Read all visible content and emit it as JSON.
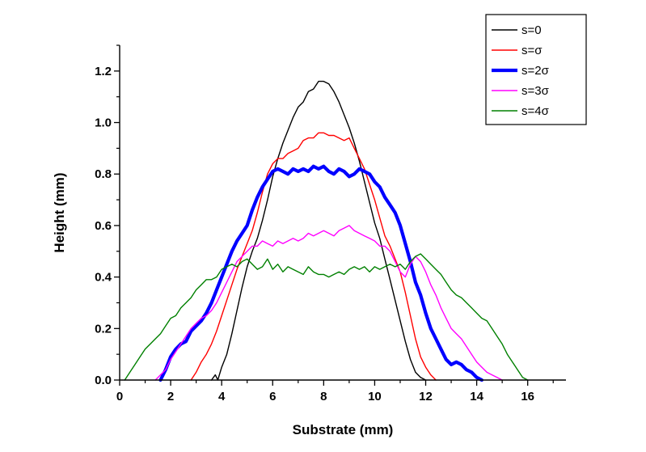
{
  "chart_data": {
    "type": "line",
    "xlabel": "Substrate (mm)",
    "ylabel": "Height (mm)",
    "xlim": [
      0,
      17.5
    ],
    "ylim": [
      0,
      1.3
    ],
    "xticks": [
      0,
      2,
      4,
      6,
      8,
      10,
      12,
      14,
      16
    ],
    "xtick_labels": [
      "0",
      "2",
      "4",
      "6",
      "8",
      "10",
      "12",
      "14",
      "16"
    ],
    "yticks": [
      0,
      0.2,
      0.4,
      0.6,
      0.8,
      1.0,
      1.2
    ],
    "ytick_labels": [
      "0.0",
      "0.2",
      "0.4",
      "0.6",
      "0.8",
      "1.0",
      "1.2"
    ],
    "grid": false,
    "legend_position": "top-right",
    "series": [
      {
        "name": "s=0",
        "color": "#000000",
        "x": [
          3.6,
          3.75,
          3.85,
          4.0,
          4.2,
          4.4,
          4.6,
          4.8,
          5.0,
          5.2,
          5.4,
          5.6,
          5.8,
          6.0,
          6.2,
          6.4,
          6.6,
          6.8,
          7.0,
          7.2,
          7.4,
          7.6,
          7.8,
          8.0,
          8.2,
          8.4,
          8.6,
          8.8,
          9.0,
          9.2,
          9.4,
          9.6,
          9.8,
          10.0,
          10.2,
          10.4,
          10.6,
          10.8,
          11.0,
          11.2,
          11.4,
          11.6,
          11.8,
          12.0
        ],
        "y": [
          0.0,
          0.02,
          0.0,
          0.05,
          0.1,
          0.18,
          0.27,
          0.36,
          0.44,
          0.5,
          0.55,
          0.62,
          0.7,
          0.79,
          0.86,
          0.92,
          0.97,
          1.02,
          1.06,
          1.08,
          1.12,
          1.13,
          1.16,
          1.16,
          1.15,
          1.12,
          1.08,
          1.03,
          0.98,
          0.92,
          0.85,
          0.77,
          0.69,
          0.61,
          0.55,
          0.47,
          0.39,
          0.31,
          0.23,
          0.15,
          0.08,
          0.03,
          0.01,
          0.0
        ]
      },
      {
        "name": "s=σ",
        "color": "#ff0000",
        "x": [
          2.8,
          3.0,
          3.2,
          3.4,
          3.6,
          3.8,
          4.0,
          4.2,
          4.4,
          4.6,
          4.8,
          5.0,
          5.2,
          5.4,
          5.6,
          5.8,
          6.0,
          6.2,
          6.4,
          6.6,
          6.8,
          7.0,
          7.2,
          7.4,
          7.6,
          7.8,
          8.0,
          8.2,
          8.4,
          8.6,
          8.8,
          9.0,
          9.2,
          9.4,
          9.6,
          9.8,
          10.0,
          10.2,
          10.4,
          10.6,
          10.8,
          11.0,
          11.2,
          11.4,
          11.6,
          11.8,
          12.0,
          12.2,
          12.4
        ],
        "y": [
          0.0,
          0.03,
          0.07,
          0.1,
          0.14,
          0.19,
          0.25,
          0.31,
          0.37,
          0.43,
          0.48,
          0.53,
          0.58,
          0.65,
          0.73,
          0.8,
          0.84,
          0.86,
          0.86,
          0.88,
          0.89,
          0.9,
          0.93,
          0.94,
          0.94,
          0.96,
          0.96,
          0.95,
          0.95,
          0.94,
          0.93,
          0.94,
          0.9,
          0.86,
          0.82,
          0.76,
          0.7,
          0.63,
          0.56,
          0.52,
          0.47,
          0.42,
          0.34,
          0.25,
          0.16,
          0.09,
          0.05,
          0.02,
          0.0
        ]
      },
      {
        "name": "s=2σ",
        "color": "#0000ff",
        "x": [
          1.6,
          1.8,
          2.0,
          2.2,
          2.4,
          2.6,
          2.8,
          3.0,
          3.2,
          3.4,
          3.6,
          3.8,
          4.0,
          4.2,
          4.4,
          4.6,
          4.8,
          5.0,
          5.2,
          5.4,
          5.6,
          5.8,
          6.0,
          6.2,
          6.4,
          6.6,
          6.8,
          7.0,
          7.2,
          7.4,
          7.6,
          7.8,
          8.0,
          8.2,
          8.4,
          8.6,
          8.8,
          9.0,
          9.2,
          9.4,
          9.6,
          9.8,
          10.0,
          10.2,
          10.4,
          10.6,
          10.8,
          11.0,
          11.2,
          11.4,
          11.6,
          11.8,
          12.0,
          12.2,
          12.4,
          12.6,
          12.8,
          13.0,
          13.2,
          13.4,
          13.6,
          13.8,
          14.0,
          14.2
        ],
        "y": [
          0.0,
          0.04,
          0.09,
          0.12,
          0.14,
          0.15,
          0.19,
          0.21,
          0.23,
          0.26,
          0.3,
          0.35,
          0.4,
          0.45,
          0.5,
          0.54,
          0.57,
          0.6,
          0.66,
          0.71,
          0.75,
          0.78,
          0.81,
          0.82,
          0.81,
          0.8,
          0.82,
          0.81,
          0.82,
          0.81,
          0.83,
          0.82,
          0.83,
          0.81,
          0.8,
          0.82,
          0.81,
          0.79,
          0.8,
          0.82,
          0.81,
          0.8,
          0.77,
          0.75,
          0.71,
          0.68,
          0.65,
          0.6,
          0.53,
          0.46,
          0.38,
          0.33,
          0.26,
          0.2,
          0.16,
          0.12,
          0.08,
          0.06,
          0.07,
          0.06,
          0.04,
          0.03,
          0.01,
          0.0
        ]
      },
      {
        "name": "s=3σ",
        "color": "#ff00ff",
        "x": [
          1.4,
          1.6,
          1.8,
          2.0,
          2.2,
          2.4,
          2.6,
          2.8,
          3.0,
          3.2,
          3.4,
          3.6,
          3.8,
          4.0,
          4.2,
          4.4,
          4.6,
          4.8,
          5.0,
          5.2,
          5.4,
          5.6,
          5.8,
          6.0,
          6.2,
          6.4,
          6.6,
          6.8,
          7.0,
          7.2,
          7.4,
          7.6,
          7.8,
          8.0,
          8.2,
          8.4,
          8.6,
          8.8,
          9.0,
          9.2,
          9.4,
          9.6,
          9.8,
          10.0,
          10.2,
          10.4,
          10.6,
          10.8,
          11.0,
          11.2,
          11.4,
          11.6,
          11.8,
          12.0,
          12.2,
          12.4,
          12.6,
          12.8,
          13.0,
          13.2,
          13.4,
          13.6,
          13.8,
          14.0,
          14.2,
          14.4,
          14.6,
          14.8,
          15.0
        ],
        "y": [
          0.0,
          0.02,
          0.04,
          0.08,
          0.11,
          0.14,
          0.17,
          0.2,
          0.22,
          0.24,
          0.25,
          0.27,
          0.3,
          0.34,
          0.38,
          0.42,
          0.46,
          0.48,
          0.5,
          0.52,
          0.52,
          0.54,
          0.53,
          0.52,
          0.54,
          0.53,
          0.54,
          0.55,
          0.54,
          0.55,
          0.57,
          0.56,
          0.57,
          0.58,
          0.57,
          0.56,
          0.58,
          0.59,
          0.6,
          0.58,
          0.57,
          0.56,
          0.55,
          0.54,
          0.52,
          0.52,
          0.5,
          0.46,
          0.42,
          0.4,
          0.45,
          0.48,
          0.46,
          0.42,
          0.37,
          0.33,
          0.28,
          0.24,
          0.2,
          0.18,
          0.16,
          0.13,
          0.1,
          0.07,
          0.05,
          0.03,
          0.02,
          0.01,
          0.0
        ]
      },
      {
        "name": "s=4σ",
        "color": "#008000",
        "x": [
          0.2,
          0.4,
          0.6,
          0.8,
          1.0,
          1.2,
          1.4,
          1.6,
          1.8,
          2.0,
          2.2,
          2.4,
          2.6,
          2.8,
          3.0,
          3.2,
          3.4,
          3.6,
          3.8,
          4.0,
          4.2,
          4.4,
          4.6,
          4.8,
          5.0,
          5.2,
          5.4,
          5.6,
          5.8,
          6.0,
          6.2,
          6.4,
          6.6,
          6.8,
          7.0,
          7.2,
          7.4,
          7.6,
          7.8,
          8.0,
          8.2,
          8.4,
          8.6,
          8.8,
          9.0,
          9.2,
          9.4,
          9.6,
          9.8,
          10.0,
          10.2,
          10.4,
          10.6,
          10.8,
          11.0,
          11.2,
          11.4,
          11.6,
          11.8,
          12.0,
          12.2,
          12.4,
          12.6,
          12.8,
          13.0,
          13.2,
          13.4,
          13.6,
          13.8,
          14.0,
          14.2,
          14.4,
          14.6,
          14.8,
          15.0,
          15.2,
          15.4,
          15.6,
          15.8,
          16.0
        ],
        "y": [
          0.0,
          0.03,
          0.06,
          0.09,
          0.12,
          0.14,
          0.16,
          0.18,
          0.21,
          0.24,
          0.25,
          0.28,
          0.3,
          0.32,
          0.35,
          0.37,
          0.39,
          0.39,
          0.4,
          0.43,
          0.44,
          0.45,
          0.44,
          0.46,
          0.47,
          0.45,
          0.43,
          0.44,
          0.47,
          0.43,
          0.45,
          0.42,
          0.44,
          0.43,
          0.42,
          0.41,
          0.44,
          0.42,
          0.41,
          0.41,
          0.4,
          0.41,
          0.42,
          0.41,
          0.43,
          0.44,
          0.43,
          0.44,
          0.42,
          0.44,
          0.43,
          0.44,
          0.45,
          0.44,
          0.45,
          0.43,
          0.46,
          0.48,
          0.49,
          0.47,
          0.45,
          0.43,
          0.41,
          0.38,
          0.35,
          0.33,
          0.32,
          0.3,
          0.28,
          0.26,
          0.24,
          0.23,
          0.2,
          0.17,
          0.14,
          0.1,
          0.07,
          0.04,
          0.01,
          0.0
        ]
      }
    ]
  }
}
